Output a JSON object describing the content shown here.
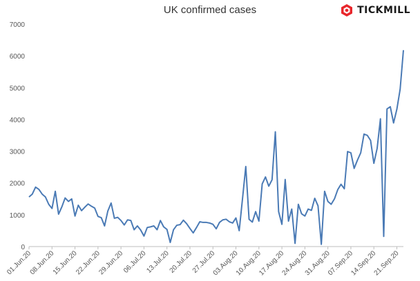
{
  "brand": {
    "name": "TICKMILL",
    "logo_icon": "tickmill-logo-icon",
    "accent_color": "#e8262b"
  },
  "chart_data": {
    "type": "line",
    "title": "UK confirmed cases",
    "xlabel": "",
    "ylabel": "",
    "ylim": [
      0,
      7000
    ],
    "y_ticks": [
      0,
      1000,
      2000,
      3000,
      4000,
      5000,
      6000,
      7000
    ],
    "grid": false,
    "line_color": "#4a7ab5",
    "x_tick_labels": [
      "01.Jun.20",
      "08.Jun.20",
      "15.Jun.20",
      "22.Jun.20",
      "29.Jun.20",
      "06.Jul.20",
      "13.Jul.20",
      "20.Jul.20",
      "27.Jul.20",
      "03.Aug.20",
      "10.Aug.20",
      "17.Aug.20",
      "24.Aug.20",
      "31.Aug.20",
      "07.Sep.20",
      "14.Sep.20",
      "21.Sep.20"
    ],
    "series": [
      {
        "values": [
          1560,
          1650,
          1870,
          1800,
          1650,
          1560,
          1330,
          1200,
          1740,
          1020,
          1250,
          1530,
          1420,
          1500,
          960,
          1300,
          1130,
          1240,
          1340,
          1270,
          1210,
          950,
          910,
          650,
          1120,
          1370,
          890,
          920,
          820,
          680,
          840,
          820,
          530,
          650,
          520,
          330,
          600,
          620,
          650,
          530,
          820,
          620,
          540,
          130,
          530,
          670,
          690,
          830,
          720,
          570,
          430,
          600,
          780,
          760,
          760,
          740,
          700,
          560,
          760,
          840,
          860,
          780,
          740,
          900,
          500,
          1500,
          2520,
          860,
          770,
          1100,
          800,
          1970,
          2190,
          1900,
          2100,
          3610,
          1100,
          700,
          2110,
          800,
          1180,
          100,
          1330,
          1030,
          960,
          1180,
          1140,
          1520,
          1280,
          70,
          1740,
          1420,
          1330,
          1500,
          1790,
          1960,
          1820,
          2990,
          2950,
          2460,
          2720,
          2950,
          3540,
          3500,
          3340,
          2620,
          3090,
          4020,
          320,
          4330,
          4400,
          3890,
          4320,
          4950,
          6180
        ]
      }
    ]
  }
}
